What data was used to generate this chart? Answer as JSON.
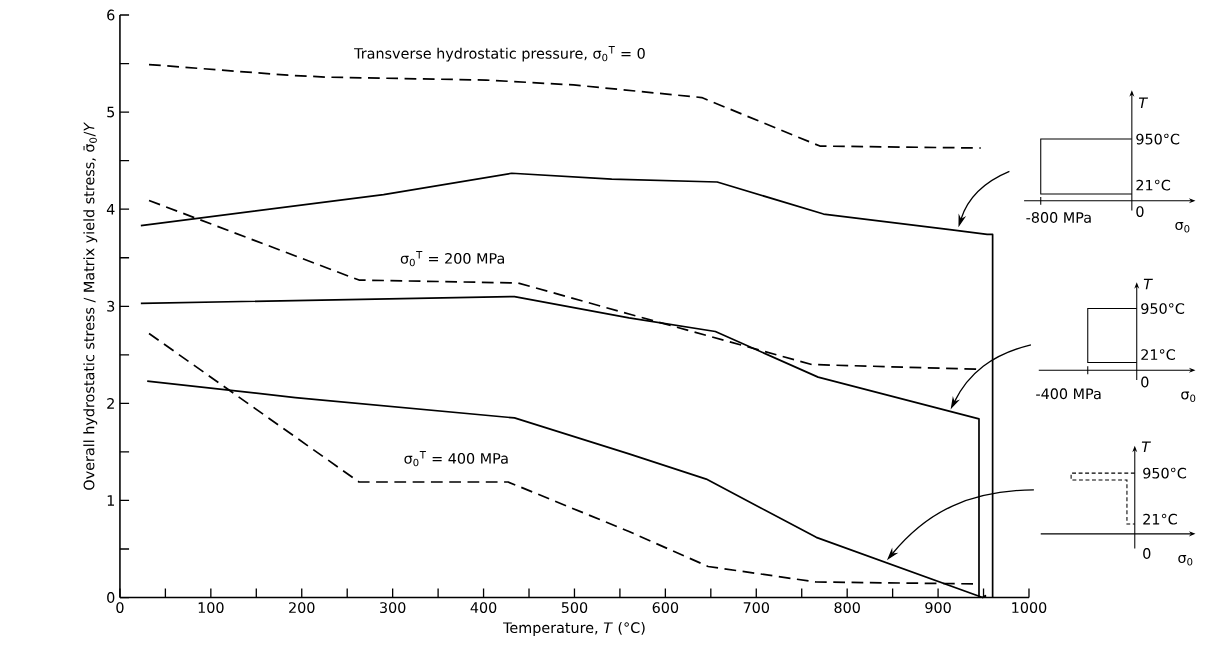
{
  "chart_data": {
    "type": "line",
    "xlabel": "Temperature, *T* (°C)",
    "ylabel": "Overall hydrostatic stress / Matrix yield stress, σ̄$_{0}$/*Y*",
    "xlim": [
      0,
      1000
    ],
    "ylim": [
      0,
      6
    ],
    "xticks": [
      0,
      {
        "value": 50,
        "label": null
      },
      100,
      {
        "value": 150,
        "label": null
      },
      200,
      {
        "value": 250,
        "label": null
      },
      300,
      {
        "value": 350,
        "label": null
      },
      400,
      {
        "value": 450,
        "label": null
      },
      500,
      {
        "value": 550,
        "label": null
      },
      600,
      {
        "value": 650,
        "label": null
      },
      700,
      {
        "value": 750,
        "label": null
      },
      800,
      {
        "value": 850,
        "label": null
      },
      900,
      {
        "value": 950,
        "label": null
      },
      1000
    ],
    "yticks": [
      0,
      {
        "value": 0.5,
        "label": null
      },
      1,
      {
        "value": 1.5,
        "label": null
      },
      2,
      {
        "value": 2.5,
        "label": null
      },
      3,
      {
        "value": 3.5,
        "label": null
      },
      4,
      {
        "value": 4.5,
        "label": null
      },
      5,
      {
        "value": 5.5,
        "label": null
      },
      6
    ],
    "legend": false,
    "grid": false,
    "marker": "none",
    "series": [
      {
        "name": "Transverse hydrostatic pressure, σ$_{0}$$^{T}$ = 0",
        "color": "#000000",
        "line_style": "dashed",
        "x": [
          32,
          185,
          228,
          403,
          499,
          640,
          770,
          947
        ],
        "values": [
          5.49,
          5.38,
          5.36,
          5.33,
          5.28,
          5.15,
          4.65,
          4.63
        ]
      },
      {
        "color": "#000000",
        "line_style": "solid",
        "x": [
          960,
          960,
          954,
          913,
          774,
          657,
          541,
          431,
          290,
          23
        ],
        "values": [
          0,
          3.74,
          3.74,
          3.79,
          3.95,
          4.28,
          4.31,
          4.37,
          4.15,
          3.83
        ]
      },
      {
        "name": "σ$_{0}$$^{T}$ = 200 MPa",
        "color": "#000000",
        "line_style": "dashed",
        "x": [
          32,
          263,
          438,
          560,
          761,
          949
        ],
        "values": [
          4.09,
          3.27,
          3.24,
          2.92,
          2.4,
          2.35
        ]
      },
      {
        "color": "#000000",
        "line_style": "solid",
        "x": [
          945,
          945,
          768,
          655,
          560,
          434,
          23
        ],
        "values": [
          0,
          1.84,
          2.27,
          2.74,
          2.88,
          3.1,
          3.03
        ]
      },
      {
        "name": "σ$_{0}$$^{T}$ = 400 MPa",
        "color": "#000000",
        "line_style": "dashed",
        "x": [
          32,
          263,
          427,
          560,
          647,
          766,
          945
        ],
        "values": [
          2.72,
          1.19,
          1.19,
          0.68,
          0.32,
          0.16,
          0.14
        ]
      },
      {
        "color": "#000000",
        "line_style": "solid",
        "x": [
          952,
          952,
          949,
          766,
          645,
          560,
          434,
          193,
          30
        ],
        "values": [
          0,
          0.02,
          0,
          0.62,
          1.22,
          1.48,
          1.85,
          2.06,
          2.23
        ]
      }
    ],
    "annotations": [
      "*T*",
      "950°C",
      "21°C",
      "0",
      "-800 MPa",
      "σ$_{0}$",
      "*T*",
      "950°C",
      "21°C",
      "0",
      "-400 MPa",
      "σ$_{0}$",
      "*T*",
      "950°C",
      "21°C",
      "0",
      "σ$_{0}$"
    ]
  }
}
